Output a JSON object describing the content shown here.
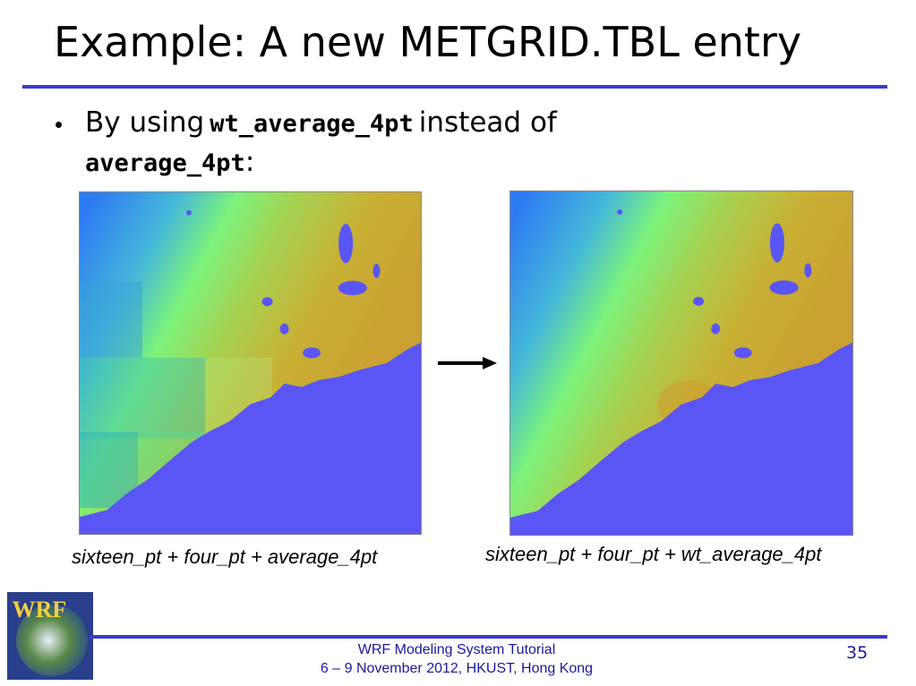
{
  "title": "Example: A new METGRID.TBL entry",
  "bullet": {
    "lead": "By using",
    "code_new": "wt_average_4pt",
    "middle": "instead of",
    "code_old": "average_4pt",
    "end": ":"
  },
  "figures": [
    {
      "caption": "sixteen_pt + four_pt + average_4pt"
    },
    {
      "caption": "sixteen_pt + four_pt + wt_average_4pt"
    }
  ],
  "footer": {
    "logo_text": "WRF",
    "line1": "WRF Modeling System Tutorial",
    "line2": "6 – 9 November 2012, HKUST, Hong Kong",
    "page_number": "35"
  }
}
